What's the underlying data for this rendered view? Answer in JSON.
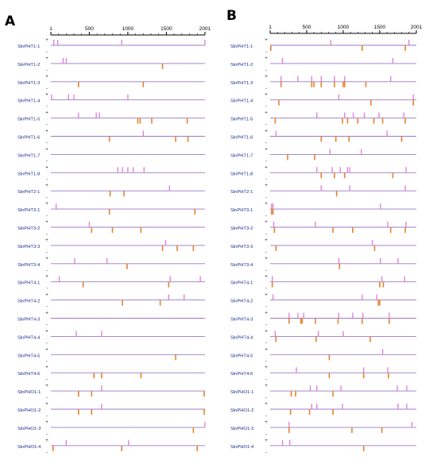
{
  "colors": {
    "plus": "#e07ad8",
    "minus": "#e8822a",
    "baseline": "#9a79c9",
    "label": "#1a2b8c",
    "axis": "#000000",
    "strand": "#222222"
  },
  "scale": {
    "min": 1,
    "max": 2001
  },
  "strand_symbols": {
    "plus": "+",
    "minus": "-"
  },
  "panels": [
    {
      "label": "A",
      "axis_ticks": [
        "1",
        "500",
        "1000",
        "1500",
        "2001"
      ],
      "axis_tick_values": [
        1,
        500,
        1000,
        1500,
        2001
      ],
      "genes": [
        {
          "name": "SlnPHT1-1",
          "plus": [
            40,
            90,
            920,
            2000
          ],
          "minus": []
        },
        {
          "name": "SlnPHT1-2",
          "plus": [
            160,
            200
          ],
          "minus": [
            1450
          ]
        },
        {
          "name": "SlnPHT1-3",
          "plus": [],
          "minus": [
            360,
            1200
          ]
        },
        {
          "name": "SlnPHT1-4",
          "plus": [
            10,
            230,
            300,
            1000
          ],
          "minus": []
        },
        {
          "name": "SlnPHT1-5",
          "plus": [
            360,
            590,
            630
          ],
          "minus": [
            1130,
            1160,
            1310,
            1770
          ]
        },
        {
          "name": "SlnPHT1-6",
          "plus": [
            1200
          ],
          "minus": [
            760,
            1620,
            1780
          ]
        },
        {
          "name": "SlnPHT1-7",
          "plus": [],
          "minus": []
        },
        {
          "name": "SlnPHT1-8",
          "plus": [
            870,
            930,
            1000,
            1070,
            1210
          ],
          "minus": []
        },
        {
          "name": "SlnPHT2-1",
          "plus": [
            1540
          ],
          "minus": [
            770,
            950
          ]
        },
        {
          "name": "SlnPHT3-1",
          "plus": [
            70
          ],
          "minus": [
            760,
            1870
          ]
        },
        {
          "name": "SlnPHT3-2",
          "plus": [
            500
          ],
          "minus": [
            530,
            800,
            1170
          ]
        },
        {
          "name": "SlnPHT3-3",
          "plus": [
            1490
          ],
          "minus": [
            1450,
            1640,
            1850
          ]
        },
        {
          "name": "SlnPHT3-4",
          "plus": [
            310,
            730
          ],
          "minus": [
            990
          ]
        },
        {
          "name": "SlnPHT4-1",
          "plus": [
            110,
            1550,
            1940
          ],
          "minus": [
            420,
            1530
          ]
        },
        {
          "name": "SlnPHT4-2",
          "plus": [
            1530,
            1730
          ],
          "minus": [
            930,
            1420
          ]
        },
        {
          "name": "SlnPHT4-3",
          "plus": [],
          "minus": []
        },
        {
          "name": "SlnPHT4-4",
          "plus": [
            330,
            660
          ],
          "minus": []
        },
        {
          "name": "SlnPHT4-5",
          "plus": [],
          "minus": [
            1620
          ]
        },
        {
          "name": "SlnPHT4-6",
          "plus": [],
          "minus": [
            560,
            660,
            1170
          ]
        },
        {
          "name": "SlnPHO1-1",
          "plus": [
            660
          ],
          "minus": [
            360,
            530,
            1990
          ]
        },
        {
          "name": "SlnPHO1-2",
          "plus": [
            660
          ],
          "minus": [
            360,
            530,
            1990
          ]
        },
        {
          "name": "SlnPHO1-3",
          "plus": [
            2000
          ],
          "minus": [
            1850
          ]
        },
        {
          "name": "SlnPHO1-4",
          "plus": [
            200,
            1010
          ],
          "minus": [
            30,
            920,
            1900
          ]
        }
      ]
    },
    {
      "label": "B",
      "axis_ticks": [
        "1",
        "500",
        "1000",
        "1500",
        "2001"
      ],
      "axis_tick_values": [
        1,
        500,
        1000,
        1500,
        2001
      ],
      "genes": [
        {
          "name": "SlnPHT1-1",
          "plus": [
            830,
            1900
          ],
          "minus": [
            10,
            1260,
            1850
          ]
        },
        {
          "name": "SlnPHT1-2",
          "plus": [
            170,
            1680
          ],
          "minus": []
        },
        {
          "name": "SlnPHT1-3",
          "plus": [
            150,
            380,
            570,
            700,
            880,
            1020,
            1650
          ],
          "minus": [
            150,
            570,
            600,
            700,
            880,
            1000,
            1020,
            1310
          ]
        },
        {
          "name": "SlnPHT1-4",
          "plus": [
            940,
            1960
          ],
          "minus": [
            120,
            1380,
            1960
          ]
        },
        {
          "name": "SlnPHT1-5",
          "plus": [
            640,
            1020,
            1140,
            1290,
            1490,
            1830
          ],
          "minus": [
            70,
            990,
            1060,
            1200,
            1420,
            1540,
            1850
          ]
        },
        {
          "name": "SlnPHT1-6",
          "plus": [
            80,
            1600
          ],
          "minus": [
            700,
            900,
            1080,
            1800
          ]
        },
        {
          "name": "SlnPHT1-7",
          "plus": [
            820,
            1250
          ],
          "minus": [
            240,
            610
          ]
        },
        {
          "name": "SlnPHT1-8",
          "plus": [
            640,
            850,
            960,
            1060,
            1090,
            1860
          ],
          "minus": [
            700,
            880,
            1020,
            1680
          ]
        },
        {
          "name": "SlnPHT2-1",
          "plus": [
            700,
            1090,
            1850
          ],
          "minus": [
            910
          ]
        },
        {
          "name": "SlnPHT3-1",
          "plus": [
            20,
            40,
            1510
          ],
          "minus": [
            20,
            40
          ]
        },
        {
          "name": "SlnPHT3-2",
          "plus": [
            50,
            620,
            1610,
            1860
          ],
          "minus": [
            60,
            860,
            1130,
            1650,
            1850
          ]
        },
        {
          "name": "SlnPHT3-3",
          "plus": [
            1400
          ],
          "minus": [
            80,
            1430
          ]
        },
        {
          "name": "SlnPHT3-4",
          "plus": [
            940,
            1510,
            1750
          ],
          "minus": [
            950
          ]
        },
        {
          "name": "SlnPHT4-1",
          "plus": [
            30,
            1530,
            1840
          ],
          "minus": [
            30,
            1500,
            1550
          ]
        },
        {
          "name": "SlnPHT4-2",
          "plus": [
            40,
            1260,
            1460
          ],
          "minus": [
            1480,
            1500
          ]
        },
        {
          "name": "SlnPHT4-3",
          "plus": [
            260,
            380,
            460,
            940,
            1130,
            1270,
            1630
          ],
          "minus": [
            260,
            420,
            440,
            620,
            930,
            1260,
            1630
          ]
        },
        {
          "name": "SlnPHT4-4",
          "plus": [
            70,
            660,
            1000
          ],
          "minus": [
            80,
            630,
            1370
          ]
        },
        {
          "name": "SlnPHT4-5",
          "plus": [
            1540
          ],
          "minus": [
            810
          ]
        },
        {
          "name": "SlnPHT4-6",
          "plus": [
            360,
            1280,
            1610
          ],
          "minus": [
            810,
            1280,
            1620
          ]
        },
        {
          "name": "SlnPHO1-1",
          "plus": [
            550,
            640,
            970,
            1740,
            1870
          ],
          "minus": [
            290,
            350,
            860
          ]
        },
        {
          "name": "SlnPHO1-2",
          "plus": [
            570,
            640,
            990,
            1750,
            1870
          ],
          "minus": [
            280,
            540,
            860
          ]
        },
        {
          "name": "SlnPHO1-3",
          "plus": [
            260,
            1940
          ],
          "minus": [
            260,
            1120,
            1530
          ]
        },
        {
          "name": "SlnPHO1-4",
          "plus": [
            170,
            270
          ],
          "minus": [
            1280
          ]
        }
      ]
    }
  ]
}
